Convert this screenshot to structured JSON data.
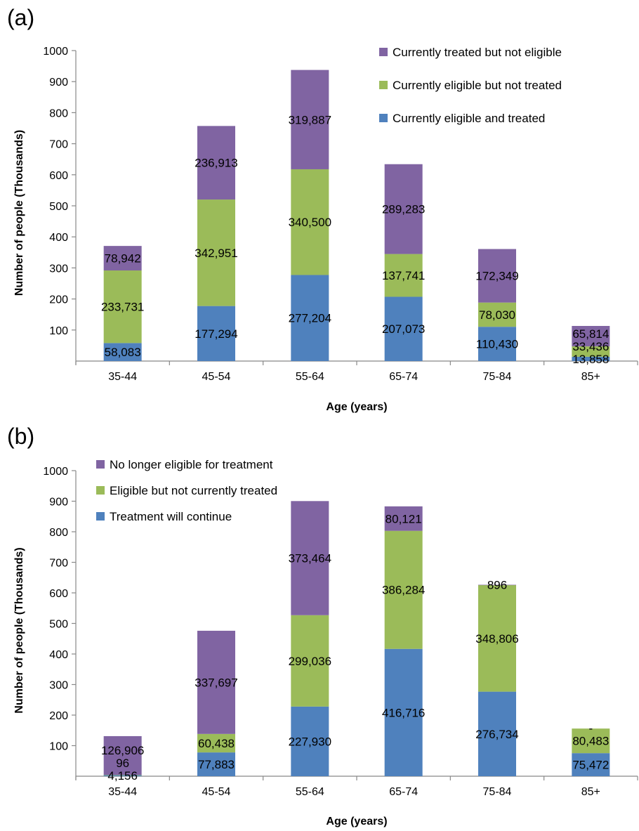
{
  "chart_data": [
    {
      "panel": "(a)",
      "type": "bar",
      "stacked": true,
      "categories": [
        "35-44",
        "45-54",
        "55-64",
        "65-74",
        "75-84",
        "85+"
      ],
      "series": [
        {
          "name": "Currently eligible and treated",
          "color": "#4f81bd",
          "values": [
            58.083,
            177.294,
            277.204,
            207.073,
            110.43,
            13.858
          ],
          "labels": [
            "58,083",
            "177,294",
            "277,204",
            "207,073",
            "110,430",
            "13,858"
          ]
        },
        {
          "name": "Currently eligible but not treated",
          "color": "#9bbb59",
          "values": [
            233.731,
            342.951,
            340.5,
            137.741,
            78.03,
            33.436
          ],
          "labels": [
            "233,731",
            "342,951",
            "340,500",
            "137,741",
            "78,030",
            "33,436"
          ]
        },
        {
          "name": "Currently treated but not eligible",
          "color": "#8064a2",
          "values": [
            78.942,
            236.913,
            319.887,
            289.283,
            172.349,
            65.814
          ],
          "labels": [
            "78,942",
            "236,913",
            "319,887",
            "289,283",
            "172,349",
            "65,814"
          ]
        }
      ],
      "xlabel": "Age (years)",
      "ylabel": "Number of people (Thousands)",
      "ylim": [
        0,
        1000
      ],
      "yticks": [
        "100",
        "200",
        "300",
        "400",
        "500",
        "600",
        "700",
        "800",
        "900",
        "1000"
      ],
      "legend_position": "top-right",
      "grid": false
    },
    {
      "panel": "(b)",
      "type": "bar",
      "stacked": true,
      "categories": [
        "35-44",
        "45-54",
        "55-64",
        "65-74",
        "75-84",
        "85+"
      ],
      "series": [
        {
          "name": "Treatment will continue",
          "color": "#4f81bd",
          "values": [
            4.156,
            77.883,
            227.93,
            416.716,
            276.734,
            75.472
          ],
          "labels": [
            "4,156",
            "77,883",
            "227,930",
            "416,716",
            "276,734",
            "75,472"
          ]
        },
        {
          "name": "Eligible but not currently treated",
          "color": "#9bbb59",
          "values": [
            0.096,
            60.438,
            299.036,
            386.284,
            348.806,
            80.483
          ],
          "labels": [
            "96",
            "60,438",
            "299,036",
            "386,284",
            "348,806",
            "80,483"
          ]
        },
        {
          "name": "No longer eligible for treatment",
          "color": "#8064a2",
          "values": [
            126.906,
            337.697,
            373.464,
            80.121,
            0.896,
            0
          ],
          "labels": [
            "126,906",
            "337,697",
            "373,464",
            "80,121",
            "896",
            "-"
          ]
        }
      ],
      "xlabel": "Age (years)",
      "ylabel": "Number of people (Thousands)",
      "ylim": [
        0,
        1000
      ],
      "yticks": [
        "100",
        "200",
        "300",
        "400",
        "500",
        "600",
        "700",
        "800",
        "900",
        "1000"
      ],
      "legend_position": "top-left",
      "grid": false
    }
  ]
}
